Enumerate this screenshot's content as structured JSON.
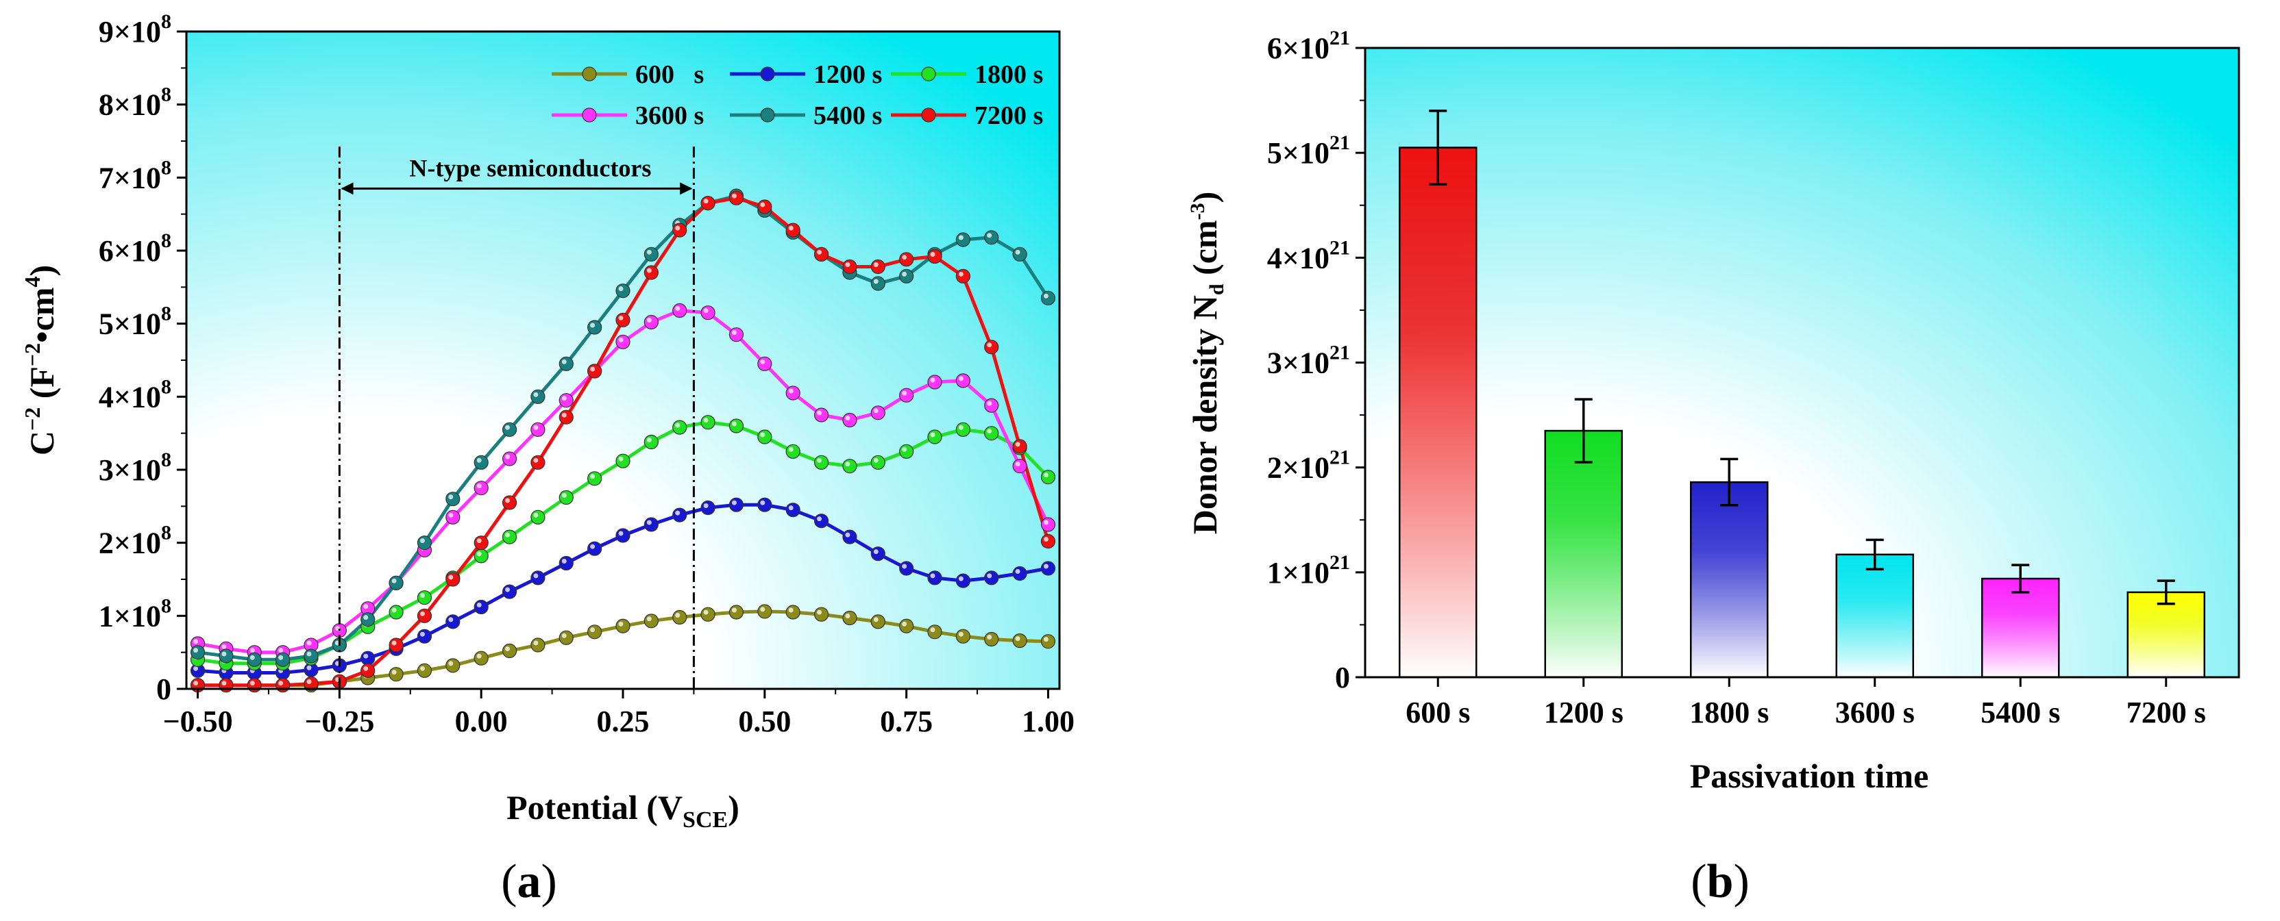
{
  "panel_a_label": "a",
  "panel_b_label": "b",
  "chart_data": [
    {
      "type": "line",
      "id": "a",
      "xlabel": "Potential",
      "xlabel_unit_main": "V",
      "xlabel_unit_sub": "SCE",
      "ylabel_main": "C",
      "ylabel_sup1": "−2",
      "ylabel_mid": " (F",
      "ylabel_sup2": "−2",
      "ylabel_mid2": "•cm",
      "ylabel_sup3": "4",
      "ylabel_end": ")",
      "xlim": [
        -0.52,
        1.02
      ],
      "ylim": [
        0,
        9
      ],
      "x_ticks": [
        -0.5,
        -0.25,
        0.0,
        0.25,
        0.5,
        0.75,
        1.0
      ],
      "x_tick_labels": [
        "−0.50",
        "−0.25",
        "0.00",
        "0.25",
        "0.50",
        "0.75",
        "1.00"
      ],
      "y_ticks": [
        0,
        1,
        2,
        3,
        4,
        5,
        6,
        7,
        8,
        9
      ],
      "y_tick_labels": [
        "0",
        "1×10",
        "2×10",
        "3×10",
        "4×10",
        "5×10",
        "6×10",
        "7×10",
        "8×10",
        "9×10"
      ],
      "y_tick_exponents": [
        "",
        "8",
        "8",
        "8",
        "8",
        "8",
        "8",
        "8",
        "8",
        "8"
      ],
      "y_scale_note": "values in units of 10^8",
      "annotation": {
        "text": "N-type semiconductors",
        "x_from": -0.25,
        "x_to": 0.375,
        "y": 6.85
      },
      "vlines": [
        -0.25,
        0.375
      ],
      "x": [
        -0.5,
        -0.45,
        -0.4,
        -0.35,
        -0.3,
        -0.25,
        -0.2,
        -0.15,
        -0.1,
        -0.05,
        0.0,
        0.05,
        0.1,
        0.15,
        0.2,
        0.25,
        0.3,
        0.35,
        0.4,
        0.45,
        0.5,
        0.55,
        0.6,
        0.65,
        0.7,
        0.75,
        0.8,
        0.85,
        0.9,
        0.95,
        1.0
      ],
      "series": [
        {
          "name": "600 s",
          "legend": "600   s",
          "color": "#8b8b1a",
          "values": [
            0.05,
            0.05,
            0.05,
            0.05,
            0.05,
            0.1,
            0.15,
            0.2,
            0.25,
            0.32,
            0.42,
            0.52,
            0.6,
            0.7,
            0.78,
            0.86,
            0.93,
            0.98,
            1.02,
            1.05,
            1.06,
            1.05,
            1.02,
            0.97,
            0.92,
            0.86,
            0.78,
            0.72,
            0.68,
            0.66,
            0.65
          ]
        },
        {
          "name": "1200 s",
          "legend": "1200 s",
          "color": "#1818d0",
          "values": [
            0.25,
            0.22,
            0.22,
            0.22,
            0.26,
            0.32,
            0.42,
            0.55,
            0.72,
            0.92,
            1.12,
            1.33,
            1.52,
            1.72,
            1.92,
            2.1,
            2.25,
            2.38,
            2.48,
            2.52,
            2.52,
            2.45,
            2.3,
            2.08,
            1.85,
            1.65,
            1.52,
            1.48,
            1.52,
            1.58,
            1.65
          ]
        },
        {
          "name": "1800 s",
          "legend": "1800 s",
          "color": "#22e022",
          "values": [
            0.4,
            0.35,
            0.35,
            0.35,
            0.42,
            0.6,
            0.85,
            1.05,
            1.25,
            1.52,
            1.82,
            2.08,
            2.35,
            2.62,
            2.88,
            3.12,
            3.38,
            3.58,
            3.65,
            3.6,
            3.45,
            3.25,
            3.1,
            3.05,
            3.1,
            3.25,
            3.45,
            3.55,
            3.5,
            3.3,
            2.9
          ]
        },
        {
          "name": "3600 s",
          "legend": "3600 s",
          "color": "#ff33ff",
          "values": [
            0.62,
            0.55,
            0.5,
            0.5,
            0.6,
            0.8,
            1.1,
            1.45,
            1.9,
            2.35,
            2.75,
            3.15,
            3.55,
            3.95,
            4.35,
            4.75,
            5.02,
            5.18,
            5.15,
            4.85,
            4.45,
            4.05,
            3.75,
            3.68,
            3.78,
            4.02,
            4.2,
            4.22,
            3.88,
            3.05,
            2.25
          ]
        },
        {
          "name": "5400 s",
          "legend": "5400 s",
          "color": "#1a7f7f",
          "values": [
            0.5,
            0.45,
            0.4,
            0.4,
            0.45,
            0.6,
            0.95,
            1.45,
            2.0,
            2.6,
            3.1,
            3.55,
            4.0,
            4.45,
            4.95,
            5.45,
            5.95,
            6.35,
            6.65,
            6.75,
            6.55,
            6.25,
            5.95,
            5.7,
            5.55,
            5.65,
            5.95,
            6.15,
            6.18,
            5.95,
            5.35
          ]
        },
        {
          "name": "7200 s",
          "legend": "7200 s",
          "color": "#ee1111",
          "values": [
            0.05,
            0.05,
            0.05,
            0.05,
            0.07,
            0.1,
            0.25,
            0.6,
            1.0,
            1.5,
            2.0,
            2.55,
            3.1,
            3.72,
            4.35,
            5.05,
            5.7,
            6.28,
            6.65,
            6.72,
            6.6,
            6.28,
            5.95,
            5.78,
            5.78,
            5.88,
            5.92,
            5.65,
            4.68,
            3.32,
            2.02
          ]
        }
      ]
    },
    {
      "type": "bar",
      "id": "b",
      "xlabel": "Passivation time",
      "ylabel_main": "Donor density N",
      "ylabel_sub": "d",
      "ylabel_unit": " (cm",
      "ylabel_sup": "-3",
      "ylabel_end": ")",
      "categories": [
        "600 s",
        "1200 s",
        "1800 s",
        "3600 s",
        "5400 s",
        "7200 s"
      ],
      "values": [
        5.05,
        2.35,
        1.86,
        1.17,
        0.94,
        0.81
      ],
      "errors": [
        0.35,
        0.3,
        0.22,
        0.14,
        0.13,
        0.11
      ],
      "colors": [
        "#ee1111",
        "#11dd22",
        "#2222cc",
        "#00e5ee",
        "#ff22ff",
        "#ffff00"
      ],
      "ylim": [
        0,
        6
      ],
      "y_ticks": [
        0,
        1,
        2,
        3,
        4,
        5,
        6
      ],
      "y_tick_labels": [
        "0",
        "1×10",
        "2×10",
        "3×10",
        "4×10",
        "5×10",
        "6×10"
      ],
      "y_tick_exponents": [
        "",
        "21",
        "21",
        "21",
        "21",
        "21",
        "21"
      ],
      "y_scale_note": "values in units of 10^21"
    }
  ]
}
